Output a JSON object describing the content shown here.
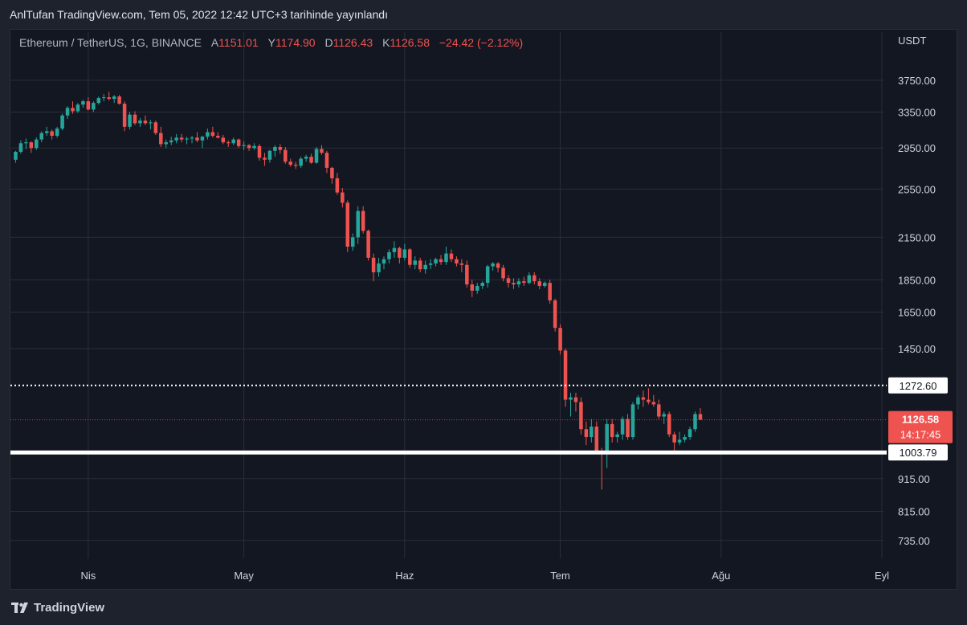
{
  "caption": "AnlTufan TradingView.com, Tem 05, 2022 12:42 UTC+3 tarihinde yayınlandı",
  "legend": {
    "symbol": "Ethereum / TetherUS, 1G, BINANCE",
    "open_label": "A",
    "open": "1151.01",
    "high_label": "Y",
    "high": "1174.90",
    "low_label": "D",
    "low": "1126.43",
    "close_label": "K",
    "close": "1126.58",
    "change": "−24.42 (−2.12%)"
  },
  "currency": "USDT",
  "brand": "TradingView",
  "colors": {
    "up": "#26a69a",
    "down": "#ef5350",
    "grid": "#2a2e39",
    "line": "#ffffff"
  },
  "chart_data": {
    "type": "candlestick",
    "symbol": "Ethereum / TetherUS",
    "interval": "1G",
    "exchange": "BINANCE",
    "y_scale": "log",
    "ylim": [
      690,
      4200
    ],
    "y_ticks": [
      "3750.00",
      "3350.00",
      "2950.00",
      "2550.00",
      "2150.00",
      "1850.00",
      "1650.00",
      "1450.00",
      "1272.60",
      "915.00",
      "815.00",
      "735.00"
    ],
    "x_ticks": [
      "Nis",
      "May",
      "Haz",
      "Tem",
      "Ağu",
      "Eyl"
    ],
    "x_tick_dates": [
      "2022-04-01",
      "2022-05-01",
      "2022-06-01",
      "2022-07-01",
      "2022-08-01",
      "2022-09-01"
    ],
    "x_range": [
      "2022-03-17",
      "2022-09-01"
    ],
    "start_date": "2022-03-18",
    "grid": true,
    "horizontal_lines": [
      {
        "label": "1272.60",
        "value": 1272.6,
        "style": "dotted"
      },
      {
        "label": "1003.79",
        "value": 1003.79,
        "style": "solid"
      }
    ],
    "last_price": {
      "value": "1126.58",
      "countdown": "14:17:45"
    },
    "candles": [
      [
        2830,
        2920,
        2800,
        2910
      ],
      [
        2910,
        3030,
        2890,
        3000
      ],
      [
        3000,
        3050,
        2940,
        3010
      ],
      [
        3010,
        3020,
        2900,
        2950
      ],
      [
        2950,
        3060,
        2930,
        3040
      ],
      [
        3040,
        3130,
        3010,
        3110
      ],
      [
        3110,
        3180,
        3080,
        3130
      ],
      [
        3130,
        3150,
        3040,
        3080
      ],
      [
        3080,
        3180,
        3060,
        3160
      ],
      [
        3160,
        3330,
        3140,
        3310
      ],
      [
        3310,
        3420,
        3270,
        3400
      ],
      [
        3400,
        3480,
        3330,
        3360
      ],
      [
        3360,
        3460,
        3340,
        3440
      ],
      [
        3440,
        3500,
        3400,
        3480
      ],
      [
        3480,
        3530,
        3370,
        3380
      ],
      [
        3380,
        3480,
        3350,
        3460
      ],
      [
        3460,
        3540,
        3440,
        3520
      ],
      [
        3520,
        3570,
        3480,
        3530
      ],
      [
        3530,
        3600,
        3490,
        3510
      ],
      [
        3510,
        3560,
        3460,
        3540
      ],
      [
        3540,
        3560,
        3440,
        3450
      ],
      [
        3450,
        3480,
        3130,
        3180
      ],
      [
        3180,
        3350,
        3150,
        3320
      ],
      [
        3320,
        3360,
        3200,
        3220
      ],
      [
        3220,
        3280,
        3180,
        3250
      ],
      [
        3250,
        3310,
        3200,
        3220
      ],
      [
        3220,
        3260,
        3150,
        3230
      ],
      [
        3230,
        3250,
        3090,
        3110
      ],
      [
        3110,
        3180,
        2960,
        2990
      ],
      [
        2990,
        3040,
        2950,
        3010
      ],
      [
        3010,
        3070,
        2980,
        3030
      ],
      [
        3030,
        3100,
        3000,
        3060
      ],
      [
        3060,
        3100,
        3010,
        3040
      ],
      [
        3040,
        3070,
        2990,
        3050
      ],
      [
        3050,
        3080,
        3000,
        3060
      ],
      [
        3060,
        3120,
        3010,
        3030
      ],
      [
        3030,
        3080,
        2950,
        3070
      ],
      [
        3070,
        3160,
        3040,
        3120
      ],
      [
        3120,
        3180,
        3060,
        3080
      ],
      [
        3080,
        3120,
        3050,
        3060
      ],
      [
        3060,
        3090,
        2990,
        3010
      ],
      [
        3010,
        3030,
        2960,
        3000
      ],
      [
        3000,
        3060,
        2980,
        3040
      ],
      [
        3040,
        3050,
        2950,
        2970
      ],
      [
        2970,
        3020,
        2930,
        2980
      ],
      [
        2980,
        2990,
        2920,
        2950
      ],
      [
        2950,
        3000,
        2930,
        2970
      ],
      [
        2970,
        2990,
        2820,
        2850
      ],
      [
        2850,
        2900,
        2770,
        2830
      ],
      [
        2830,
        2930,
        2800,
        2920
      ],
      [
        2920,
        2980,
        2860,
        2960
      ],
      [
        2960,
        2990,
        2890,
        2930
      ],
      [
        2930,
        2960,
        2790,
        2810
      ],
      [
        2810,
        2840,
        2760,
        2780
      ],
      [
        2780,
        2810,
        2740,
        2770
      ],
      [
        2770,
        2860,
        2750,
        2840
      ],
      [
        2840,
        2880,
        2810,
        2860
      ],
      [
        2860,
        2890,
        2790,
        2800
      ],
      [
        2800,
        2960,
        2790,
        2940
      ],
      [
        2940,
        2980,
        2880,
        2900
      ],
      [
        2900,
        2920,
        2700,
        2750
      ],
      [
        2750,
        2760,
        2600,
        2650
      ],
      [
        2650,
        2700,
        2500,
        2520
      ],
      [
        2520,
        2560,
        2390,
        2430
      ],
      [
        2430,
        2450,
        2040,
        2080
      ],
      [
        2080,
        2180,
        2050,
        2150
      ],
      [
        2150,
        2400,
        2100,
        2360
      ],
      [
        2360,
        2400,
        2180,
        2200
      ],
      [
        2200,
        2210,
        1980,
        2000
      ],
      [
        2000,
        2030,
        1840,
        1900
      ],
      [
        1900,
        2000,
        1870,
        1960
      ],
      [
        1960,
        2010,
        1920,
        1990
      ],
      [
        1990,
        2060,
        1960,
        2040
      ],
      [
        2040,
        2120,
        2000,
        2070
      ],
      [
        2070,
        2080,
        1960,
        2000
      ],
      [
        2000,
        2100,
        1980,
        2060
      ],
      [
        2060,
        2070,
        1930,
        1950
      ],
      [
        1950,
        2010,
        1920,
        1980
      ],
      [
        1980,
        2000,
        1900,
        1920
      ],
      [
        1920,
        1980,
        1890,
        1950
      ],
      [
        1950,
        1990,
        1920,
        1960
      ],
      [
        1960,
        2000,
        1940,
        1990
      ],
      [
        1990,
        2020,
        1950,
        1970
      ],
      [
        1970,
        2080,
        1950,
        2030
      ],
      [
        2030,
        2060,
        1970,
        1990
      ],
      [
        1990,
        2010,
        1940,
        1960
      ],
      [
        1960,
        1990,
        1900,
        1950
      ],
      [
        1950,
        1980,
        1800,
        1820
      ],
      [
        1820,
        1850,
        1740,
        1780
      ],
      [
        1780,
        1830,
        1760,
        1810
      ],
      [
        1810,
        1840,
        1790,
        1830
      ],
      [
        1830,
        1950,
        1800,
        1940
      ],
      [
        1940,
        1970,
        1910,
        1960
      ],
      [
        1960,
        1970,
        1900,
        1930
      ],
      [
        1930,
        1950,
        1840,
        1860
      ],
      [
        1860,
        1880,
        1800,
        1830
      ],
      [
        1830,
        1860,
        1790,
        1820
      ],
      [
        1820,
        1860,
        1800,
        1840
      ],
      [
        1840,
        1870,
        1810,
        1830
      ],
      [
        1830,
        1900,
        1820,
        1880
      ],
      [
        1880,
        1900,
        1820,
        1840
      ],
      [
        1840,
        1860,
        1790,
        1810
      ],
      [
        1810,
        1840,
        1800,
        1830
      ],
      [
        1830,
        1850,
        1700,
        1720
      ],
      [
        1720,
        1730,
        1540,
        1560
      ],
      [
        1560,
        1580,
        1420,
        1440
      ],
      [
        1440,
        1450,
        1180,
        1210
      ],
      [
        1210,
        1240,
        1140,
        1220
      ],
      [
        1220,
        1240,
        1160,
        1200
      ],
      [
        1200,
        1220,
        1070,
        1090
      ],
      [
        1090,
        1120,
        1030,
        1060
      ],
      [
        1060,
        1130,
        1040,
        1100
      ],
      [
        1100,
        1120,
        1000,
        1010
      ],
      [
        1010,
        1020,
        880,
        1000
      ],
      [
        1000,
        1130,
        950,
        1110
      ],
      [
        1110,
        1130,
        1040,
        1060
      ],
      [
        1060,
        1080,
        1040,
        1070
      ],
      [
        1070,
        1140,
        1050,
        1130
      ],
      [
        1130,
        1150,
        1050,
        1060
      ],
      [
        1060,
        1200,
        1050,
        1190
      ],
      [
        1190,
        1230,
        1170,
        1220
      ],
      [
        1220,
        1250,
        1180,
        1210
      ],
      [
        1210,
        1260,
        1190,
        1200
      ],
      [
        1200,
        1230,
        1180,
        1190
      ],
      [
        1190,
        1210,
        1130,
        1140
      ],
      [
        1140,
        1160,
        1110,
        1150
      ],
      [
        1150,
        1160,
        1060,
        1070
      ],
      [
        1070,
        1080,
        1000,
        1040
      ],
      [
        1040,
        1080,
        1030,
        1050
      ],
      [
        1050,
        1070,
        1040,
        1060
      ],
      [
        1060,
        1100,
        1050,
        1090
      ],
      [
        1090,
        1160,
        1080,
        1150
      ],
      [
        1150,
        1175,
        1126,
        1127
      ]
    ]
  }
}
